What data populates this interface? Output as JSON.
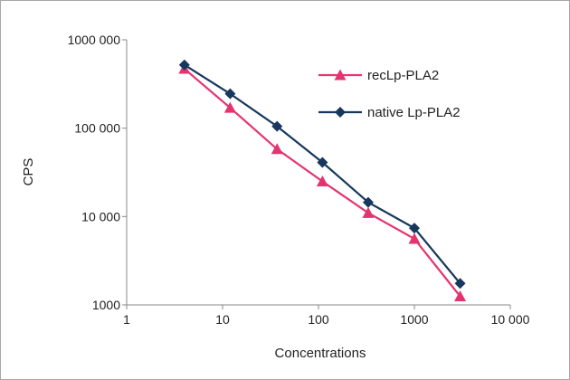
{
  "chart_data": {
    "type": "line",
    "xlabel": "Concentrations",
    "ylabel": "CPS",
    "x_scale": "log",
    "y_scale": "log",
    "xlim": [
      1,
      10000
    ],
    "ylim": [
      1000,
      1000000
    ],
    "x_ticks": [
      1,
      10,
      100,
      1000,
      10000
    ],
    "x_tick_labels": [
      "1",
      "10",
      "100",
      "1000",
      "10 000"
    ],
    "y_ticks": [
      1000,
      10000,
      100000,
      1000000
    ],
    "y_tick_labels": [
      "1000",
      "10 000",
      "100 000",
      "1000 000"
    ],
    "grid": false,
    "legend_position": "top-right",
    "series": [
      {
        "name": "recLp-PLA2",
        "color": "#e5336f",
        "marker": "triangle",
        "x": [
          4,
          12,
          37,
          110,
          330,
          1000,
          3000
        ],
        "y": [
          470000,
          170000,
          58000,
          25000,
          11000,
          5600,
          1250
        ]
      },
      {
        "name": "native Lp-PLA2",
        "color": "#17375e",
        "marker": "diamond",
        "x": [
          4,
          12,
          37,
          110,
          330,
          1000,
          3000
        ],
        "y": [
          520000,
          245000,
          105000,
          41000,
          14500,
          7400,
          1750
        ]
      }
    ]
  }
}
